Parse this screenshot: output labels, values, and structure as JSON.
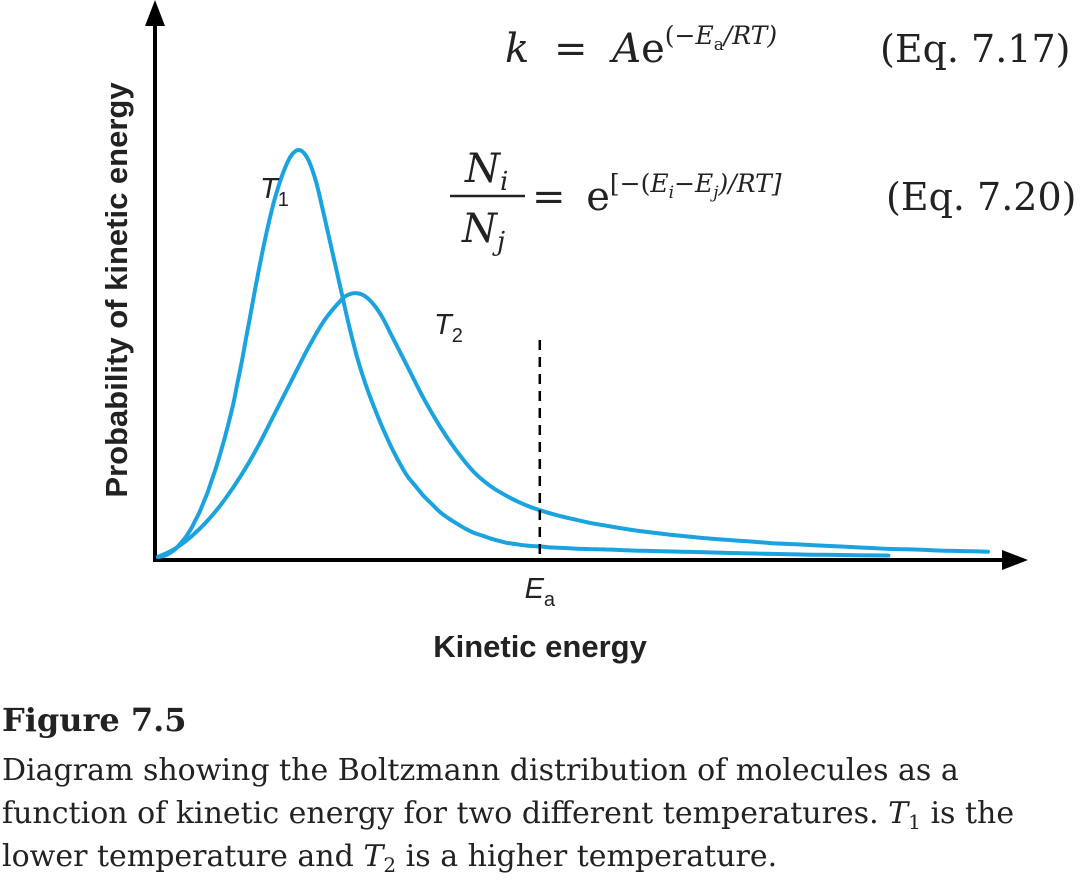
{
  "chart_data": {
    "type": "line",
    "xlabel": "Kinetic energy",
    "ylabel": "Probability of kinetic energy",
    "grid": false,
    "x_ticks": [],
    "y_ticks": [],
    "series": [
      {
        "name": "T1",
        "label_main": "T",
        "label_sub": "1",
        "color": "#1aa3de",
        "x": [
          0,
          1,
          2,
          3,
          3.5,
          4,
          4.5,
          5,
          5.5,
          6,
          6.5,
          7,
          8,
          9,
          9.5,
          10,
          10.5,
          11,
          12,
          13,
          14,
          15,
          16,
          17,
          18,
          19,
          20,
          21,
          22,
          23,
          24,
          25,
          26,
          27,
          28,
          29,
          30,
          31,
          32,
          33,
          34,
          35,
          36,
          37,
          38,
          39,
          40,
          41,
          42,
          43,
          44,
          45,
          46,
          47,
          48,
          49,
          50,
          51,
          52,
          53,
          54,
          55,
          56,
          57,
          58,
          59,
          60,
          62,
          64,
          66,
          68,
          70,
          72,
          74,
          76,
          78,
          80,
          82,
          84,
          86,
          88
        ],
        "y": [
          0,
          0.5,
          1.8,
          4,
          5.4,
          7,
          9,
          11,
          13.5,
          16,
          19,
          22,
          29,
          37,
          42,
          47,
          52.5,
          58,
          69,
          79,
          87.5,
          94,
          98.5,
          100,
          98,
          92.5,
          84,
          75,
          66,
          57,
          49,
          42.5,
          37,
          32,
          27.5,
          23.5,
          20,
          17.5,
          15,
          13,
          11,
          9.5,
          8.2,
          7,
          6,
          5.3,
          4.6,
          4,
          3.5,
          3.2,
          2.9,
          2.7,
          2.6,
          2.4,
          2.3,
          2.2,
          2.1,
          2.0,
          1.95,
          1.9,
          1.85,
          1.8,
          1.7,
          1.6,
          1.55,
          1.5,
          1.45,
          1.35,
          1.25,
          1.15,
          1.05,
          0.95,
          0.85,
          0.75,
          0.7,
          0.6,
          0.55,
          0.5,
          0.45,
          0.4,
          0.35
        ]
      },
      {
        "name": "T2",
        "label_main": "T",
        "label_sub": "2",
        "color": "#1aa3de",
        "x": [
          0,
          2,
          4,
          6,
          8,
          10,
          12,
          14,
          16,
          18,
          20,
          22,
          23,
          24,
          25,
          26,
          27,
          28,
          30,
          32,
          34,
          36,
          38,
          40,
          42,
          44,
          46,
          48,
          50,
          52,
          54,
          56,
          58,
          60,
          62,
          64,
          66,
          68,
          70,
          72,
          74,
          76,
          78,
          80,
          82,
          84,
          86,
          88,
          90,
          92,
          94,
          96,
          98,
          100
        ],
        "y": [
          0,
          2,
          5,
          9,
          14,
          20,
          27,
          35,
          43,
          51,
          58,
          63,
          64.5,
          64.8,
          64,
          62,
          59,
          55,
          47,
          39,
          32,
          26,
          21,
          17.5,
          15,
          13,
          11.5,
          10.3,
          9.3,
          8.4,
          7.7,
          7.0,
          6.4,
          5.9,
          5.4,
          5.0,
          4.6,
          4.3,
          4.0,
          3.7,
          3.4,
          3.2,
          3.0,
          2.8,
          2.6,
          2.4,
          2.2,
          2.0,
          1.9,
          1.8,
          1.6,
          1.5,
          1.4,
          1.3
        ]
      }
    ],
    "ea_marker": {
      "x": 46,
      "label_main": "E",
      "label_sub": "a"
    }
  },
  "equations": {
    "eq1": {
      "k": "k",
      "equals": "=",
      "A": "A",
      "e": "e",
      "exponent_open": "(−",
      "E": "E",
      "E_sub": "a",
      "exponent_close": "/RT)",
      "ref": "(Eq. 7.17)"
    },
    "eq2": {
      "num": "N",
      "num_sub": "i",
      "den": "N",
      "den_sub": "j",
      "equals": "=",
      "e": "e",
      "exponent_open": "[−(",
      "E1": "E",
      "E1_sub": "i",
      "minus": "−",
      "E2": "E",
      "E2_sub": "j",
      "exponent_close": ")/RT]",
      "ref": "(Eq. 7.20)"
    }
  },
  "caption": {
    "title": "Figure 7.5",
    "line1": "Diagram showing the Boltzmann distribution of molecules as a",
    "line2_pre": "function of kinetic energy for two different temperatures.",
    "line2_T": "T",
    "line2_sub": "1",
    "line2_post": "is the",
    "line3_pre": "lower temperature and",
    "line3_T": "T",
    "line3_sub": "2",
    "line3_post": "is a higher temperature."
  }
}
